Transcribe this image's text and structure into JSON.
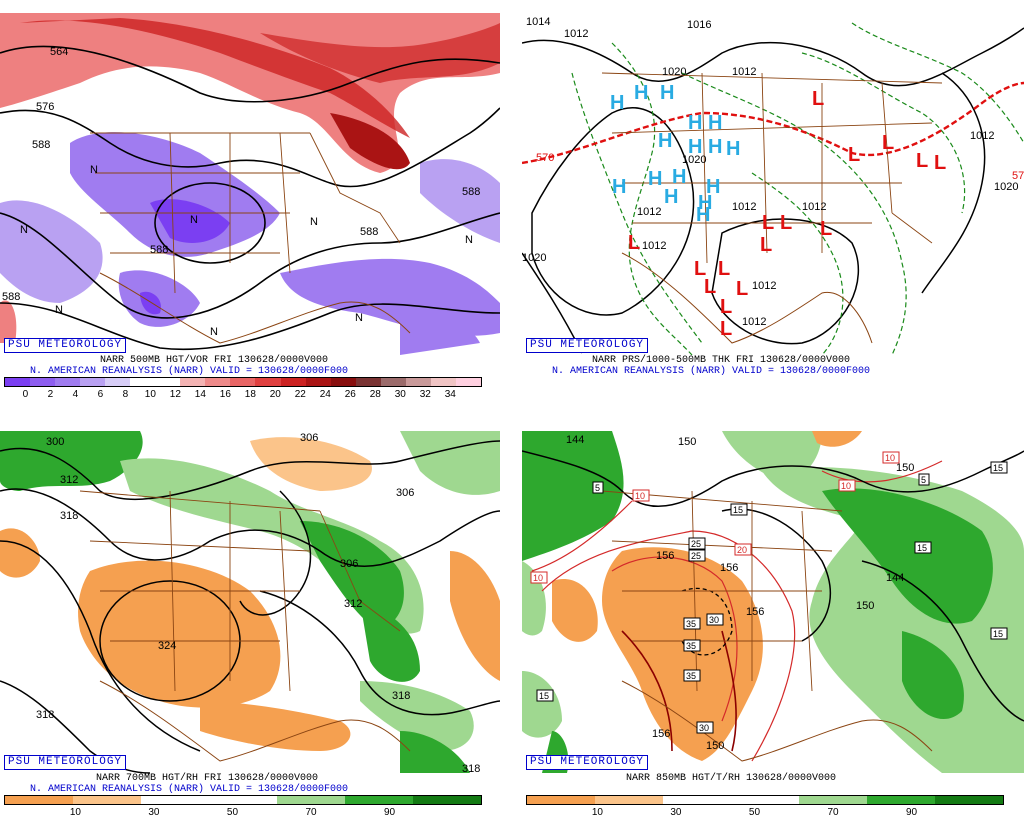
{
  "panels": {
    "p1": {
      "badge": "PSU METEOROLOGY",
      "caption1": "NARR 500MB HGT/VOR FRI 130628/0000V000",
      "caption2": "N. AMERICAN REANALYSIS (NARR) VALID = 130628/0000F000",
      "colorbar": [
        "#7b3ff2",
        "#8e5ef0",
        "#a07cf0",
        "#b9a1f2",
        "#d7cdf7",
        "#ffffff",
        "#ffffff",
        "#f3b3b3",
        "#ee8a8a",
        "#e86565",
        "#e04040",
        "#cc2222",
        "#aa1414",
        "#880e0e",
        "#7a3333",
        "#9b6b6b",
        "#c99a9a",
        "#f0c4c4",
        "#ffd0e0"
      ],
      "ticks": [
        "0",
        "2",
        "4",
        "6",
        "8",
        "10",
        "12",
        "14",
        "16",
        "18",
        "20",
        "22",
        "24",
        "26",
        "28",
        "30",
        "32",
        "34"
      ],
      "labels": [
        "564",
        "576",
        "588",
        "588",
        "588",
        "588",
        "588",
        "N",
        "N",
        "N",
        "N",
        "N",
        "N",
        "N",
        "N"
      ]
    },
    "p2": {
      "badge": "PSU METEOROLOGY",
      "caption1": "NARR PRS/1000-500MB THK FRI 130628/0000V000",
      "caption2": "N. AMERICAN REANALYSIS (NARR) VALID = 130628/0000F000",
      "labels": [
        "1014",
        "1012",
        "1016",
        "1012",
        "1020",
        "1020",
        "1012",
        "1012",
        "1020",
        "1012",
        "1012",
        "1012",
        "1012",
        "1012",
        "1020",
        "570",
        "57"
      ],
      "highs": [
        "H",
        "H",
        "H",
        "H",
        "H",
        "H",
        "H",
        "H",
        "H",
        "H",
        "H",
        "H",
        "H",
        "H",
        "H",
        "H"
      ],
      "lows": [
        "L",
        "L",
        "L",
        "L",
        "L",
        "L",
        "L",
        "L",
        "L",
        "L",
        "L",
        "L",
        "L",
        "L",
        "L",
        "L"
      ]
    },
    "p3": {
      "badge": "PSU METEOROLOGY",
      "caption1": "NARR 700MB HGT/RH FRI 130628/0000V000",
      "caption2": "N. AMERICAN REANALYSIS (NARR) VALID = 130628/0000F000",
      "colorbar": [
        "#f5a050",
        "#fbc48a",
        "#ffffff",
        "#ffffff",
        "#9fd890",
        "#2ea82e",
        "#137a13"
      ],
      "ticks": [
        "10",
        "30",
        "50",
        "70",
        "90"
      ],
      "labels": [
        "300",
        "306",
        "312",
        "318",
        "306",
        "306",
        "312",
        "324",
        "318",
        "318",
        "318"
      ]
    },
    "p4": {
      "badge": "PSU METEOROLOGY",
      "caption1": "NARR 850MB HGT/T/RH 130628/0000V000",
      "caption2": "",
      "colorbar": [
        "#f5a050",
        "#fbc48a",
        "#ffffff",
        "#ffffff",
        "#9fd890",
        "#2ea82e",
        "#137a13"
      ],
      "ticks": [
        "10",
        "30",
        "50",
        "70",
        "90"
      ],
      "labels": [
        "144",
        "150",
        "156",
        "156",
        "156",
        "150",
        "150",
        "156",
        "150",
        "144"
      ],
      "boxes": [
        "5",
        "10",
        "15",
        "25",
        "25",
        "30",
        "35",
        "35",
        "35",
        "30",
        "20",
        "10",
        "10",
        "15",
        "15",
        "15",
        "5",
        "15",
        "10"
      ]
    }
  }
}
